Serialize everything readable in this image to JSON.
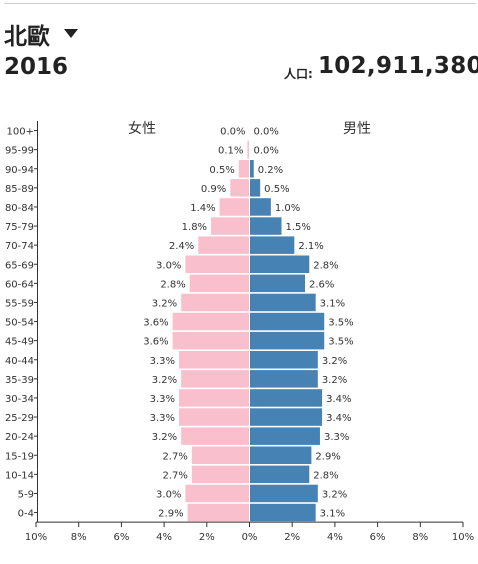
{
  "header": {
    "region": "北歐",
    "year": "2016",
    "population_label": "人口:",
    "population_value": "102,911,380"
  },
  "colors": {
    "female": "#f9bfcd",
    "male": "#4682b4",
    "axis": "#333333",
    "text": "#333333"
  },
  "icons": {
    "region_dropdown": "caret-down-icon"
  },
  "chart_data": {
    "type": "bar",
    "orientation": "horizontal-population-pyramid",
    "categories": [
      "100+",
      "95-99",
      "90-94",
      "85-89",
      "80-84",
      "75-79",
      "70-74",
      "65-69",
      "60-64",
      "55-59",
      "50-54",
      "45-49",
      "40-44",
      "35-39",
      "30-34",
      "25-29",
      "20-24",
      "15-19",
      "10-14",
      "5-9",
      "0-4"
    ],
    "series": [
      {
        "name": "女性",
        "side": "left",
        "values": [
          0.0,
          0.1,
          0.5,
          0.9,
          1.4,
          1.8,
          2.4,
          3.0,
          2.8,
          3.2,
          3.6,
          3.6,
          3.3,
          3.2,
          3.3,
          3.3,
          3.2,
          2.7,
          2.7,
          3.0,
          2.9
        ]
      },
      {
        "name": "男性",
        "side": "right",
        "values": [
          0.0,
          0.0,
          0.2,
          0.5,
          1.0,
          1.5,
          2.1,
          2.8,
          2.6,
          3.1,
          3.5,
          3.5,
          3.2,
          3.2,
          3.4,
          3.4,
          3.3,
          2.9,
          2.8,
          3.2,
          3.1
        ]
      }
    ],
    "xlim": [
      -10,
      10
    ],
    "xticks": [
      "10%",
      "8%",
      "6%",
      "4%",
      "2%",
      "0%",
      "2%",
      "4%",
      "6%",
      "8%",
      "10%"
    ],
    "value_unit": "%"
  }
}
